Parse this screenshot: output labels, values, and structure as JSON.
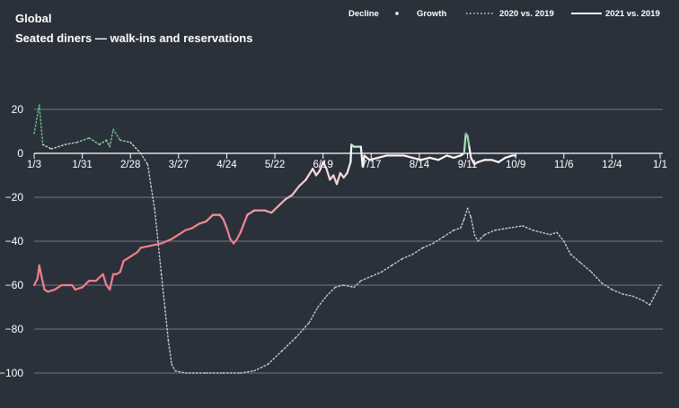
{
  "chart_data": {
    "type": "line",
    "title": "Global",
    "subtitle": "Seated diners — walk-ins and reservations",
    "legend": {
      "decline_label": "Decline",
      "growth_label": "Growth",
      "series_2020_label": "2020 vs. 2019",
      "series_2021_label": "2021 vs. 2019",
      "placement": "top-right"
    },
    "colors": {
      "background": "#2b313b",
      "gridline": "#727984",
      "decline": "#f07f88",
      "growth": "#6cc28a",
      "neutral": "#ffffff"
    },
    "yticks": [
      "20",
      "0",
      "−20",
      "−40",
      "−60",
      "−80",
      "−100"
    ],
    "ylim": [
      -110,
      25
    ],
    "xticks": [
      "1/3",
      "1/31",
      "2/28",
      "3/27",
      "4/24",
      "5/22",
      "6/19",
      "7/17",
      "8/14",
      "9/11",
      "10/9",
      "11/6",
      "12/4",
      "1/1"
    ],
    "x_range_days": [
      0,
      364
    ],
    "series": [
      {
        "name": "2020 vs. 2019",
        "style": "dotted",
        "points": [
          [
            0,
            9
          ],
          [
            3,
            22
          ],
          [
            5,
            4
          ],
          [
            10,
            2
          ],
          [
            18,
            4
          ],
          [
            25,
            5
          ],
          [
            32,
            7
          ],
          [
            38,
            4
          ],
          [
            42,
            6
          ],
          [
            44,
            3
          ],
          [
            46,
            11
          ],
          [
            50,
            6
          ],
          [
            56,
            5
          ],
          [
            62,
            0
          ],
          [
            66,
            -5
          ],
          [
            68,
            -15
          ],
          [
            70,
            -25
          ],
          [
            72,
            -40
          ],
          [
            74,
            -55
          ],
          [
            76,
            -70
          ],
          [
            78,
            -85
          ],
          [
            80,
            -96
          ],
          [
            82,
            -99
          ],
          [
            88,
            -100
          ],
          [
            100,
            -100
          ],
          [
            110,
            -100
          ],
          [
            120,
            -100
          ],
          [
            128,
            -99
          ],
          [
            136,
            -96
          ],
          [
            144,
            -90
          ],
          [
            152,
            -84
          ],
          [
            160,
            -77
          ],
          [
            165,
            -70
          ],
          [
            170,
            -65
          ],
          [
            175,
            -61
          ],
          [
            180,
            -60
          ],
          [
            186,
            -61
          ],
          [
            190,
            -58
          ],
          [
            196,
            -56
          ],
          [
            202,
            -54
          ],
          [
            208,
            -51
          ],
          [
            214,
            -48
          ],
          [
            220,
            -46
          ],
          [
            226,
            -43
          ],
          [
            232,
            -41
          ],
          [
            238,
            -38
          ],
          [
            244,
            -35
          ],
          [
            248,
            -34
          ],
          [
            250,
            -30
          ],
          [
            252,
            -25
          ],
          [
            254,
            -29
          ],
          [
            256,
            -37
          ],
          [
            258,
            -40
          ],
          [
            262,
            -37
          ],
          [
            268,
            -35
          ],
          [
            276,
            -34
          ],
          [
            284,
            -33
          ],
          [
            290,
            -35
          ],
          [
            300,
            -37
          ],
          [
            304,
            -36
          ],
          [
            308,
            -40
          ],
          [
            312,
            -46
          ],
          [
            318,
            -50
          ],
          [
            324,
            -54
          ],
          [
            330,
            -59
          ],
          [
            336,
            -62
          ],
          [
            342,
            -64
          ],
          [
            348,
            -65
          ],
          [
            354,
            -67
          ],
          [
            358,
            -69
          ],
          [
            360,
            -66
          ],
          [
            362,
            -63
          ],
          [
            364,
            -60
          ]
        ]
      },
      {
        "name": "2021 vs. 2019",
        "style": "solid",
        "points": [
          [
            0,
            -60
          ],
          [
            2,
            -57
          ],
          [
            3,
            -51
          ],
          [
            4,
            -55
          ],
          [
            6,
            -62
          ],
          [
            8,
            -63
          ],
          [
            12,
            -62
          ],
          [
            16,
            -60
          ],
          [
            22,
            -60
          ],
          [
            24,
            -62
          ],
          [
            28,
            -61
          ],
          [
            32,
            -58
          ],
          [
            36,
            -58
          ],
          [
            40,
            -55
          ],
          [
            42,
            -60
          ],
          [
            44,
            -62
          ],
          [
            46,
            -55
          ],
          [
            48,
            -55
          ],
          [
            50,
            -54
          ],
          [
            52,
            -49
          ],
          [
            56,
            -47
          ],
          [
            60,
            -45
          ],
          [
            62,
            -43
          ],
          [
            68,
            -42
          ],
          [
            74,
            -41
          ],
          [
            80,
            -39
          ],
          [
            84,
            -37
          ],
          [
            88,
            -35
          ],
          [
            92,
            -34
          ],
          [
            96,
            -32
          ],
          [
            100,
            -31
          ],
          [
            104,
            -28
          ],
          [
            108,
            -28
          ],
          [
            110,
            -30
          ],
          [
            112,
            -34
          ],
          [
            114,
            -39
          ],
          [
            116,
            -41
          ],
          [
            118,
            -39
          ],
          [
            120,
            -36
          ],
          [
            124,
            -28
          ],
          [
            128,
            -26
          ],
          [
            134,
            -26
          ],
          [
            138,
            -27
          ],
          [
            142,
            -24
          ],
          [
            146,
            -21
          ],
          [
            150,
            -19
          ],
          [
            154,
            -15
          ],
          [
            158,
            -12
          ],
          [
            162,
            -7
          ],
          [
            164,
            -10
          ],
          [
            166,
            -8
          ],
          [
            168,
            -4
          ],
          [
            170,
            -7
          ],
          [
            172,
            -12
          ],
          [
            174,
            -10
          ],
          [
            176,
            -14
          ],
          [
            178,
            -9
          ],
          [
            180,
            -11
          ],
          [
            182,
            -9
          ],
          [
            184,
            -4
          ],
          [
            184.5,
            4
          ],
          [
            186,
            3
          ],
          [
            190,
            3
          ],
          [
            191,
            -6
          ],
          [
            192,
            -1
          ],
          [
            195,
            -3
          ],
          [
            200,
            -2
          ],
          [
            205,
            -1
          ],
          [
            210,
            -1
          ],
          [
            215,
            -1
          ],
          [
            220,
            -2
          ],
          [
            225,
            -3
          ],
          [
            230,
            -2
          ],
          [
            235,
            -3
          ],
          [
            240,
            -1
          ],
          [
            244,
            -2
          ],
          [
            248,
            -1
          ],
          [
            250,
            0
          ],
          [
            251,
            9
          ],
          [
            252,
            8
          ],
          [
            253,
            3
          ],
          [
            254,
            -2
          ],
          [
            256,
            -5
          ],
          [
            258,
            -4
          ],
          [
            262,
            -3
          ],
          [
            266,
            -3
          ],
          [
            270,
            -4
          ],
          [
            274,
            -2
          ],
          [
            278,
            -1
          ],
          [
            280,
            -1
          ]
        ]
      }
    ]
  }
}
